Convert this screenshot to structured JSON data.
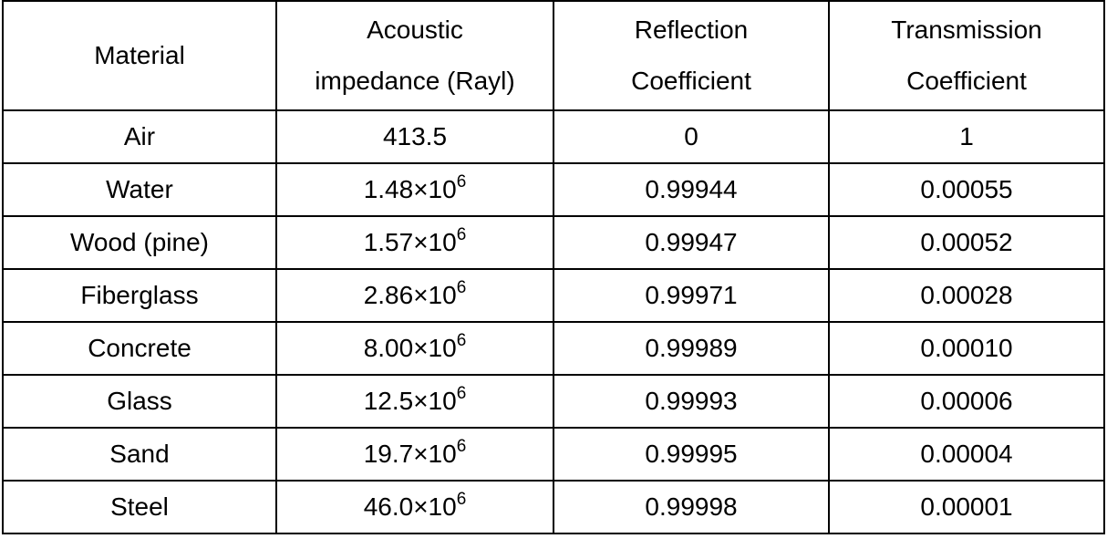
{
  "table": {
    "headers": [
      {
        "lines": [
          "Material"
        ]
      },
      {
        "lines": [
          "Acoustic",
          "impedance (Rayl)"
        ]
      },
      {
        "lines": [
          "Reflection",
          "Coefficient"
        ]
      },
      {
        "lines": [
          "Transmission",
          "Coefficient"
        ]
      }
    ],
    "rows": [
      {
        "material": "Air",
        "impedance": {
          "mantissa": "413.5",
          "times": "",
          "exp": ""
        },
        "reflection": "0",
        "transmission": "1"
      },
      {
        "material": "Water",
        "impedance": {
          "mantissa": "1.48",
          "times": "×10",
          "exp": "6"
        },
        "reflection": "0.99944",
        "transmission": "0.00055"
      },
      {
        "material": "Wood (pine)",
        "impedance": {
          "mantissa": "1.57",
          "times": "×10",
          "exp": "6"
        },
        "reflection": "0.99947",
        "transmission": "0.00052"
      },
      {
        "material": "Fiberglass",
        "impedance": {
          "mantissa": "2.86",
          "times": "×10",
          "exp": "6"
        },
        "reflection": "0.99971",
        "transmission": "0.00028"
      },
      {
        "material": "Concrete",
        "impedance": {
          "mantissa": "8.00",
          "times": "×10",
          "exp": "6"
        },
        "reflection": "0.99989",
        "transmission": "0.00010"
      },
      {
        "material": "Glass",
        "impedance": {
          "mantissa": "12.5",
          "times": "×10",
          "exp": "6"
        },
        "reflection": "0.99993",
        "transmission": "0.00006"
      },
      {
        "material": "Sand",
        "impedance": {
          "mantissa": "19.7",
          "times": "×10",
          "exp": "6"
        },
        "reflection": "0.99995",
        "transmission": "0.00004"
      },
      {
        "material": "Steel",
        "impedance": {
          "mantissa": "46.0",
          "times": "×10",
          "exp": "6"
        },
        "reflection": "0.99998",
        "transmission": "0.00001"
      }
    ]
  }
}
